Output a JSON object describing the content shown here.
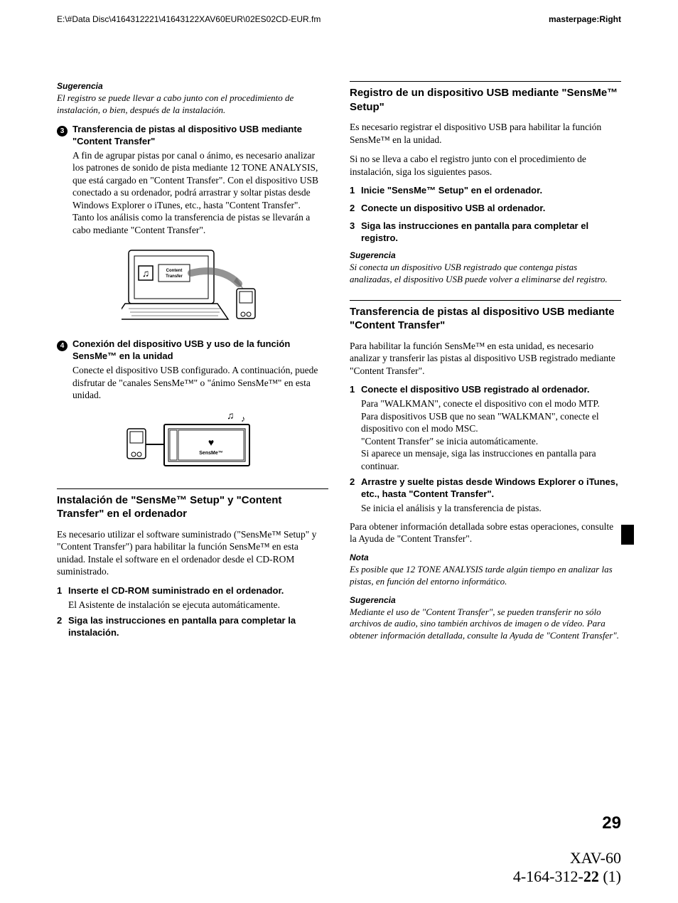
{
  "header": {
    "path": "E:\\#Data Disc\\4164312221\\41643122XAV60EUR\\02ES02CD-EUR.fm",
    "masterpage": "masterpage:Right"
  },
  "left": {
    "sug1_label": "Sugerencia",
    "sug1_body": "El registro se puede llevar a cabo junto con el procedimiento de instalación, o bien, después de la instalación.",
    "step3_num": "3",
    "step3_title": "Transferencia de pistas al dispositivo USB mediante \"Content Transfer\"",
    "step3_body": "A fin de agrupar pistas por canal o ánimo, es necesario analizar los patrones de sonido de pista mediante 12 TONE ANALYSIS, que está cargado en \"Content Transfer\". Con el dispositivo USB conectado a su ordenador, podrá arrastrar y soltar pistas desde Windows Explorer o iTunes, etc., hasta \"Content Transfer\".\nTanto los análisis como la transferencia de pistas se llevarán a cabo mediante \"Content Transfer\".",
    "fig1_label": "Content Transfer",
    "step4_num": "4",
    "step4_title": "Conexión del dispositivo USB y uso de la función SensMe™ en la unidad",
    "step4_body": "Conecte el dispositivo USB configurado. A continuación, puede disfrutar de \"canales SensMe™\" o \"ánimo SensMe™\" en esta unidad.",
    "fig2_label": "SensMe™",
    "sec1_title": "Instalación de \"SensMe™ Setup\" y \"Content Transfer\" en el ordenador",
    "sec1_body": "Es necesario utilizar el software suministrado (\"SensMe™ Setup\" y \"Content Transfer\") para habilitar la función SensMe™ en esta unidad. Instale el software en el ordenador desde el CD-ROM suministrado.",
    "sec1_ol1_num": "1",
    "sec1_ol1_title": "Inserte el CD-ROM suministrado en el ordenador.",
    "sec1_ol1_body": "El Asistente de instalación se ejecuta automáticamente.",
    "sec1_ol2_num": "2",
    "sec1_ol2_title": "Siga las instrucciones en pantalla para completar la instalación."
  },
  "right": {
    "sec2_title": "Registro de un dispositivo USB mediante \"SensMe™ Setup\"",
    "sec2_p1": "Es necesario registrar el dispositivo USB para habilitar la función SensMe™ en la unidad.",
    "sec2_p2": "Si no se lleva a cabo el registro junto con el procedimiento de instalación, siga los siguientes pasos.",
    "sec2_ol1_num": "1",
    "sec2_ol1_title": "Inicie \"SensMe™ Setup\" en el ordenador.",
    "sec2_ol2_num": "2",
    "sec2_ol2_title": "Conecte un dispositivo USB al ordenador.",
    "sec2_ol3_num": "3",
    "sec2_ol3_title": "Siga las instrucciones en pantalla para completar el registro.",
    "sec2_sug_label": "Sugerencia",
    "sec2_sug_body": "Si conecta un dispositivo USB registrado que contenga pistas analizadas, el dispositivo USB puede volver a eliminarse del registro.",
    "sec3_title": "Transferencia de pistas al dispositivo USB mediante \"Content Transfer\"",
    "sec3_p1": "Para habilitar la función SensMe™ en esta unidad, es necesario analizar y transferir las pistas al dispositivo USB registrado mediante \"Content Transfer\".",
    "sec3_ol1_num": "1",
    "sec3_ol1_title": "Conecte el dispositivo USB registrado al ordenador.",
    "sec3_ol1_body": "Para \"WALKMAN\", conecte el dispositivo con el modo MTP.\nPara dispositivos USB que no sean \"WALKMAN\", conecte el dispositivo con el modo MSC.\n\"Content Transfer\" se inicia automáticamente.\nSi aparece un mensaje, siga las instrucciones en pantalla para continuar.",
    "sec3_ol2_num": "2",
    "sec3_ol2_title": "Arrastre y suelte pistas desde Windows Explorer o iTunes, etc., hasta \"Content Transfer\".",
    "sec3_ol2_body": "Se inicia el análisis y la transferencia de pistas.",
    "sec3_p2": "Para obtener información detallada sobre estas operaciones, consulte la Ayuda de \"Content Transfer\".",
    "sec3_nota_label": "Nota",
    "sec3_nota_body": "Es posible que 12 TONE ANALYSIS tarde algún tiempo en analizar las pistas, en función del entorno informático.",
    "sec3_sug_label": "Sugerencia",
    "sec3_sug_body": "Mediante el uso de \"Content Transfer\", se pueden transferir no sólo archivos de audio, sino también archivos de imagen o de vídeo. Para obtener información detallada, consulte la Ayuda de \"Content Transfer\"."
  },
  "page_number": "29",
  "footer": {
    "line1": "XAV-60",
    "line2_pre": "4-164-312-",
    "line2_bold": "22",
    "line2_post": " (1)"
  }
}
